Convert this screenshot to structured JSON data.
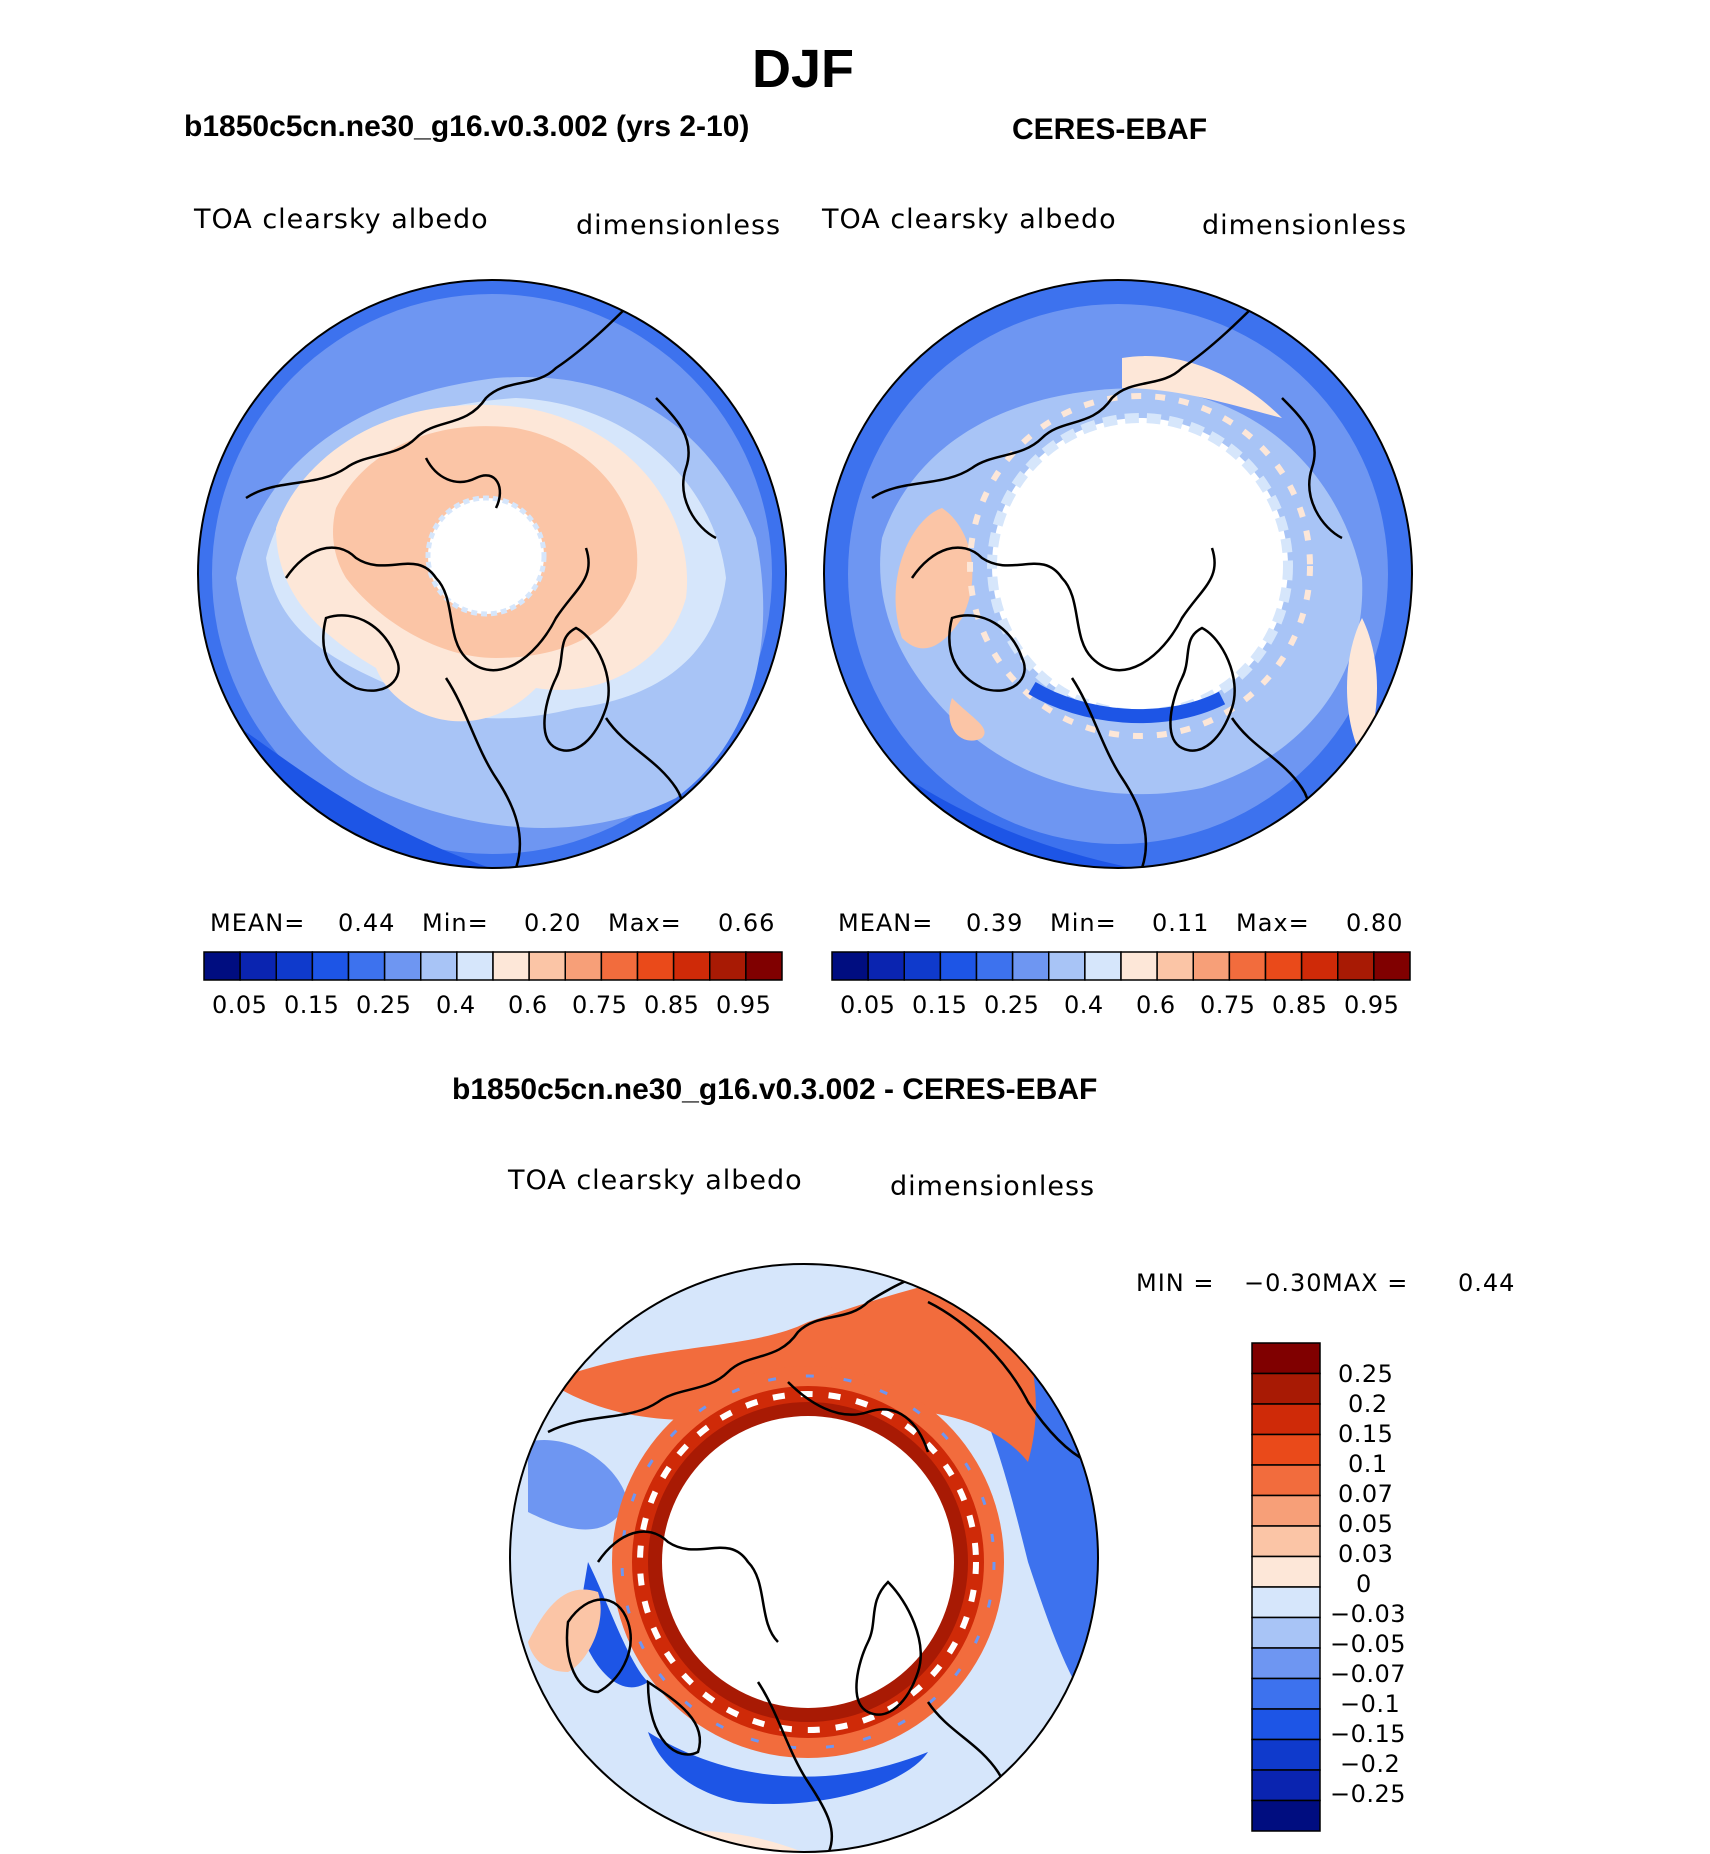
{
  "title": "DJF",
  "units_label": "dimensionless",
  "variable_label": "TOA clearsky albedo",
  "palette_abs": [
    "#000d80",
    "#0a24b0",
    "#0f3acc",
    "#1d55e6",
    "#3d72ee",
    "#6e96f2",
    "#a8c4f6",
    "#d6e6fb",
    "#fde7d8",
    "#fbc5a6",
    "#f79f78",
    "#f26c3d",
    "#ea4a1a",
    "#cf2a08",
    "#a81a04",
    "#800000"
  ],
  "palette_diff": [
    "#000d80",
    "#0a24b0",
    "#0f3acc",
    "#1d55e6",
    "#3d72ee",
    "#6e96f2",
    "#a8c4f6",
    "#d6e6fb",
    "#fde7d8",
    "#fbc5a6",
    "#f79f78",
    "#f26c3d",
    "#ea4a1a",
    "#cf2a08",
    "#a81a04",
    "#800000"
  ],
  "panels": {
    "model": {
      "title": "b1850c5cn.ne30_g16.v0.3.002 (yrs 2-10)",
      "mean_label": "MEAN=",
      "mean": "0.44",
      "min_label": "Min=",
      "min": "0.20",
      "max_label": "Max=",
      "max": "0.66",
      "ticks": [
        "0.05",
        "0.15",
        "0.25",
        "0.4",
        "0.6",
        "0.75",
        "0.85",
        "0.95"
      ]
    },
    "obs": {
      "title": "CERES-EBAF",
      "mean_label": "MEAN=",
      "mean": "0.39",
      "min_label": "Min=",
      "min": "0.11",
      "max_label": "Max=",
      "max": "0.80",
      "ticks": [
        "0.05",
        "0.15",
        "0.25",
        "0.4",
        "0.6",
        "0.75",
        "0.85",
        "0.95"
      ]
    },
    "diff": {
      "title": "b1850c5cn.ne30_g16.v0.3.002 - CERES-EBAF",
      "min_label": "MIN =",
      "min": "−0.30",
      "max_label": "MAX =",
      "max": "0.44",
      "ticks": [
        "0.25",
        "0.2",
        "0.15",
        "0.1",
        "0.07",
        "0.05",
        "0.03",
        "0",
        "−0.03",
        "−0.05",
        "−0.07",
        "−0.1",
        "−0.15",
        "−0.2",
        "−0.25"
      ]
    }
  }
}
